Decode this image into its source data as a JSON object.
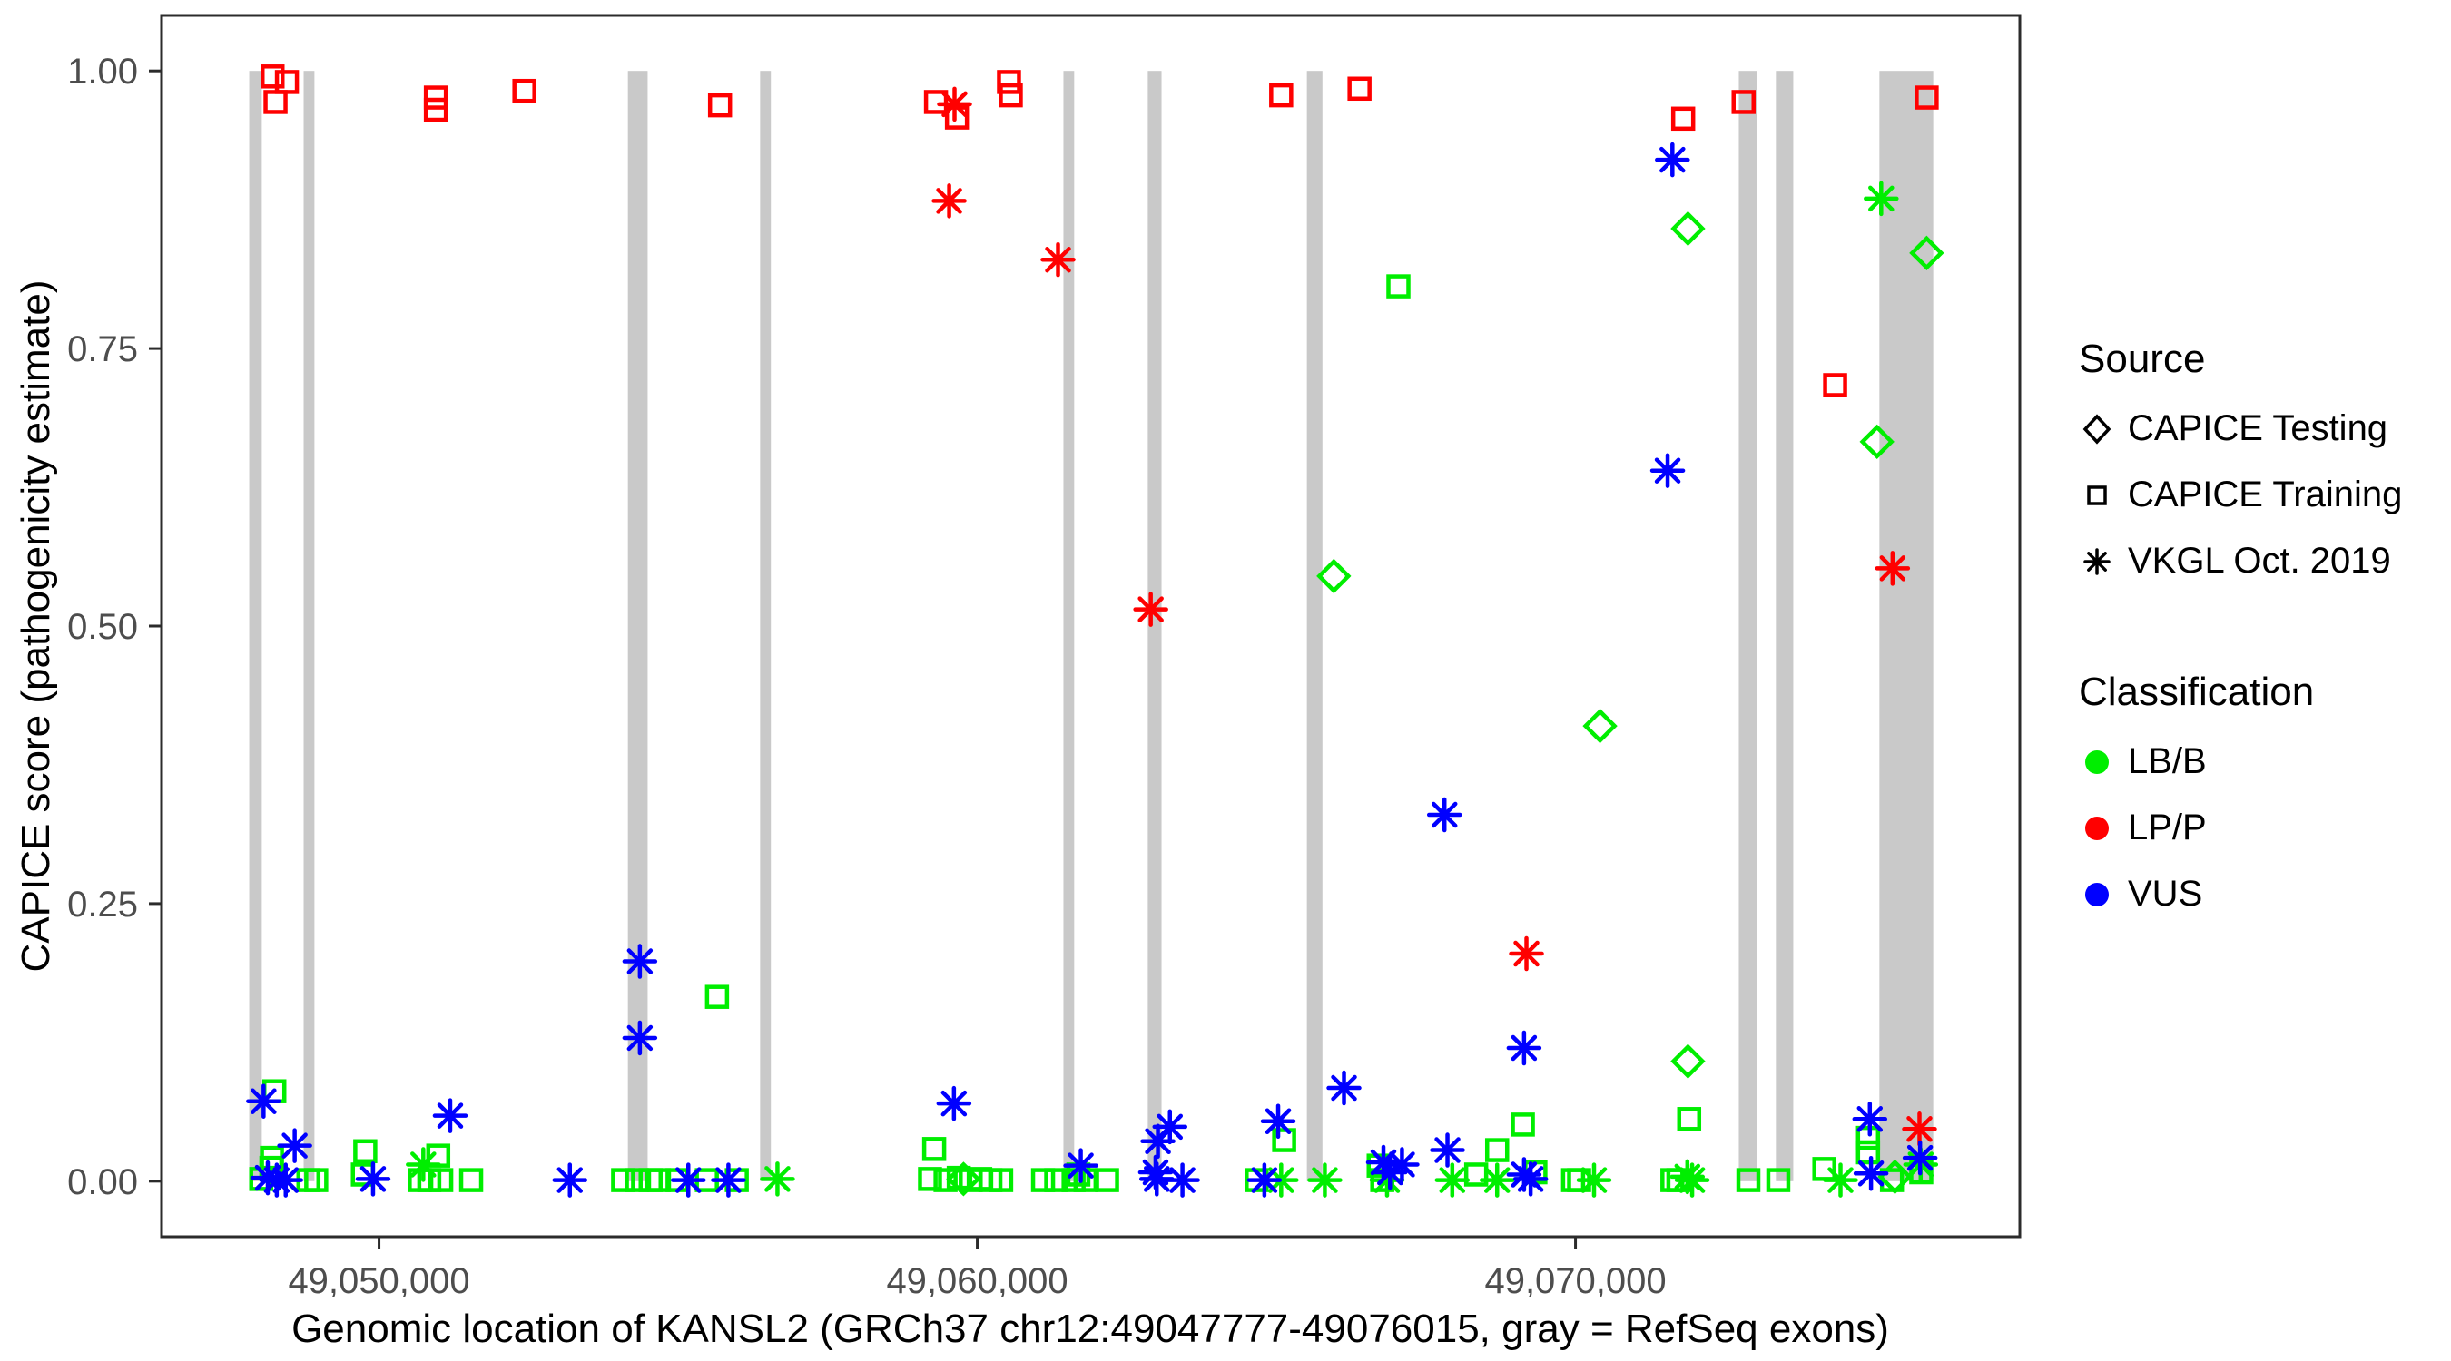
{
  "colors": {
    "LB/B": "#00EE00",
    "LP/P": "#FF0000",
    "VUS": "#0000FF",
    "exon": "#C9C9C9",
    "axis_line": "#2B2B2B",
    "axis_text": "#4D4D4D",
    "background": "#FFFFFF"
  },
  "legend": {
    "source": {
      "title": "Source",
      "items": [
        {
          "label": "CAPICE Testing",
          "shape": "diamond"
        },
        {
          "label": "CAPICE Training",
          "shape": "square"
        },
        {
          "label": "VKGL Oct. 2019",
          "shape": "asterisk"
        }
      ]
    },
    "classification": {
      "title": "Classification",
      "items": [
        {
          "label": "LB/B",
          "color": "#00EE00"
        },
        {
          "label": "LP/P",
          "color": "#FF0000"
        },
        {
          "label": "VUS",
          "color": "#0000FF"
        }
      ]
    }
  },
  "chart_data": {
    "type": "scatter",
    "title": "",
    "xlabel": "Genomic location of KANSL2 (GRCh37 chr12:49047777-49076015, gray = RefSeq exons)",
    "ylabel": "CAPICE score (pathogenicity estimate)",
    "x_domain": [
      49046365,
      49077427
    ],
    "y_domain": [
      -0.05,
      1.05
    ],
    "grid": "off",
    "legend_position": "right",
    "x_ticks": [
      {
        "value": 49050000,
        "label": "49,050,000"
      },
      {
        "value": 49060000,
        "label": "49,060,000"
      },
      {
        "value": 49070000,
        "label": "49,070,000"
      }
    ],
    "y_ticks": [
      {
        "value": 0.0,
        "label": "0.00"
      },
      {
        "value": 0.25,
        "label": "0.25"
      },
      {
        "value": 0.5,
        "label": "0.50"
      },
      {
        "value": 0.75,
        "label": "0.75"
      },
      {
        "value": 1.0,
        "label": "1.00"
      }
    ],
    "exons_note": "gray vertical bars = RefSeq exons, drawn from y=0 to y=1",
    "exons": [
      [
        49047830,
        49048040
      ],
      [
        49048740,
        49048920
      ],
      [
        49054160,
        49054490
      ],
      [
        49056370,
        49056550
      ],
      [
        49061440,
        49061620
      ],
      [
        49062850,
        49063080
      ],
      [
        49065510,
        49065770
      ],
      [
        49072730,
        49073030
      ],
      [
        49073350,
        49073640
      ],
      [
        49075080,
        49075980
      ]
    ],
    "series": [
      {
        "name": "CAPICE Training / LP-P",
        "source": "CAPICE Training",
        "classification": "LP/P",
        "shape": "square",
        "points": [
          [
            49048220,
            0.995
          ],
          [
            49048460,
            0.99
          ],
          [
            49048270,
            0.972
          ],
          [
            49050950,
            0.976
          ],
          [
            49050950,
            0.965
          ],
          [
            49052430,
            0.982
          ],
          [
            49055700,
            0.969
          ],
          [
            49059310,
            0.972
          ],
          [
            49059660,
            0.958
          ],
          [
            49060530,
            0.99
          ],
          [
            49060560,
            0.978
          ],
          [
            49065080,
            0.978
          ],
          [
            49066390,
            0.984
          ],
          [
            49071800,
            0.957
          ],
          [
            49072810,
            0.972
          ],
          [
            49075870,
            0.976
          ],
          [
            49074340,
            0.717
          ]
        ]
      },
      {
        "name": "VKGL Oct. 2019 / LP-P",
        "source": "VKGL Oct. 2019",
        "classification": "LP/P",
        "shape": "asterisk",
        "points": [
          [
            49059620,
            0.97
          ],
          [
            49059530,
            0.883
          ],
          [
            49061350,
            0.83
          ],
          [
            49062900,
            0.515
          ],
          [
            49069180,
            0.205
          ],
          [
            49075300,
            0.552
          ],
          [
            49075750,
            0.047
          ]
        ]
      },
      {
        "name": "CAPICE Testing / LB-B",
        "source": "CAPICE Testing",
        "classification": "LB/B",
        "shape": "diamond",
        "points": [
          [
            49065960,
            0.545
          ],
          [
            49070410,
            0.41
          ],
          [
            49071880,
            0.858
          ],
          [
            49075040,
            0.666
          ],
          [
            49075870,
            0.836
          ],
          [
            49071880,
            0.108
          ],
          [
            49075340,
            0.004
          ],
          [
            49059770,
            0.002
          ]
        ]
      },
      {
        "name": "CAPICE Training / LB-B",
        "source": "CAPICE Training",
        "classification": "LB/B",
        "shape": "square",
        "points": [
          [
            49048250,
            0.081
          ],
          [
            49048210,
            0.021
          ],
          [
            49048200,
            0.012
          ],
          [
            49048030,
            0.002
          ],
          [
            49048820,
            0.001
          ],
          [
            49048950,
            0.001
          ],
          [
            49049770,
            0.027
          ],
          [
            49049730,
            0.006
          ],
          [
            49050990,
            0.023
          ],
          [
            49050680,
            0.001
          ],
          [
            49050840,
            0.001
          ],
          [
            49051040,
            0.001
          ],
          [
            49051540,
            0.001
          ],
          [
            49054080,
            0.001
          ],
          [
            49054310,
            0.001
          ],
          [
            49054540,
            0.001
          ],
          [
            49054680,
            0.001
          ],
          [
            49054990,
            0.001
          ],
          [
            49055480,
            0.001
          ],
          [
            49055980,
            0.001
          ],
          [
            49055650,
            0.166
          ],
          [
            49059280,
            0.029
          ],
          [
            49059210,
            0.002
          ],
          [
            49059470,
            0.001
          ],
          [
            49059690,
            0.003
          ],
          [
            49059890,
            0.001
          ],
          [
            49060050,
            0.002
          ],
          [
            49060220,
            0.001
          ],
          [
            49060400,
            0.001
          ],
          [
            49061100,
            0.001
          ],
          [
            49061320,
            0.001
          ],
          [
            49061610,
            0.001
          ],
          [
            49061690,
            0.006
          ],
          [
            49061810,
            0.001
          ],
          [
            49062170,
            0.001
          ],
          [
            49064670,
            0.001
          ],
          [
            49065130,
            0.037
          ],
          [
            49066710,
            0.014
          ],
          [
            49066770,
            0.001
          ],
          [
            49067040,
            0.806
          ],
          [
            49068340,
            0.006
          ],
          [
            49068690,
            0.028
          ],
          [
            49069120,
            0.051
          ],
          [
            49069330,
            0.008
          ],
          [
            49069960,
            0.001
          ],
          [
            49070060,
            0.001
          ],
          [
            49071620,
            0.001
          ],
          [
            49071720,
            0.001
          ],
          [
            49071900,
            0.056
          ],
          [
            49072890,
            0.001
          ],
          [
            49073390,
            0.001
          ],
          [
            49074160,
            0.011
          ],
          [
            49074890,
            0.039
          ],
          [
            49074890,
            0.026
          ],
          [
            49075290,
            0.001
          ],
          [
            49075780,
            0.008
          ]
        ]
      },
      {
        "name": "VKGL Oct. 2019 / LB-B",
        "source": "VKGL Oct. 2019",
        "classification": "LB/B",
        "shape": "asterisk",
        "points": [
          [
            49050740,
            0.015
          ],
          [
            49056660,
            0.002
          ],
          [
            49065080,
            0.001
          ],
          [
            49065810,
            0.001
          ],
          [
            49066850,
            0.001
          ],
          [
            49067940,
            0.001
          ],
          [
            49068690,
            0.001
          ],
          [
            49070310,
            0.001
          ],
          [
            49071870,
            0.004
          ],
          [
            49071950,
            0.001
          ],
          [
            49074430,
            0.001
          ],
          [
            49075110,
            0.885
          ],
          [
            49075770,
            0.015
          ]
        ]
      },
      {
        "name": "VKGL Oct. 2019 / VUS",
        "source": "VKGL Oct. 2019",
        "classification": "VUS",
        "shape": "asterisk",
        "points": [
          [
            49048070,
            0.072
          ],
          [
            49048590,
            0.032
          ],
          [
            49048140,
            0.003
          ],
          [
            49048290,
            0.001
          ],
          [
            49048440,
            0.001
          ],
          [
            49049900,
            0.002
          ],
          [
            49051190,
            0.059
          ],
          [
            49053190,
            0.001
          ],
          [
            49054360,
            0.198
          ],
          [
            49054360,
            0.129
          ],
          [
            49055170,
            0.001
          ],
          [
            49055840,
            0.001
          ],
          [
            49059610,
            0.07
          ],
          [
            49061730,
            0.014
          ],
          [
            49062980,
            0.008
          ],
          [
            49063000,
            0.002
          ],
          [
            49063020,
            0.036
          ],
          [
            49063220,
            0.049
          ],
          [
            49063430,
            0.001
          ],
          [
            49064800,
            0.001
          ],
          [
            49065030,
            0.054
          ],
          [
            49066130,
            0.084
          ],
          [
            49066790,
            0.017
          ],
          [
            49066900,
            0.008
          ],
          [
            49067100,
            0.015
          ],
          [
            49067810,
            0.33
          ],
          [
            49067860,
            0.028
          ],
          [
            49069140,
            0.12
          ],
          [
            49069140,
            0.006
          ],
          [
            49069250,
            0.002
          ],
          [
            49071540,
            0.64
          ],
          [
            49071620,
            0.92
          ],
          [
            49074920,
            0.056
          ],
          [
            49074940,
            0.007
          ],
          [
            49075760,
            0.021
          ]
        ]
      }
    ]
  }
}
